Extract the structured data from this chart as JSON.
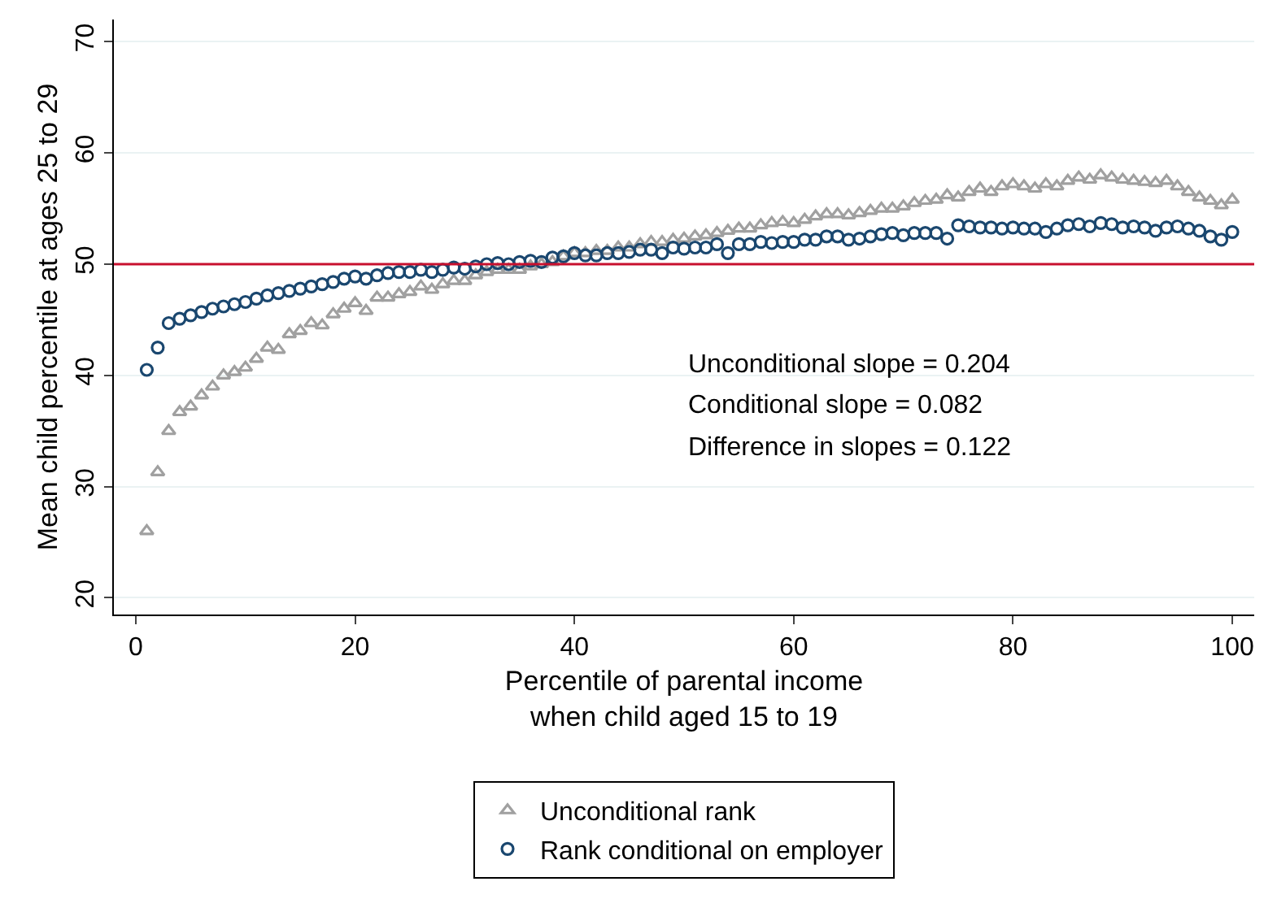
{
  "chart_data": {
    "type": "scatter",
    "xlabel": "Percentile of parental income\nwhen child aged 15 to 19",
    "ylabel": "Mean child percentile at ages 25 to 29",
    "x": [
      1,
      2,
      3,
      4,
      5,
      6,
      7,
      8,
      9,
      10,
      11,
      12,
      13,
      14,
      15,
      16,
      17,
      18,
      19,
      20,
      21,
      22,
      23,
      24,
      25,
      26,
      27,
      28,
      29,
      30,
      31,
      32,
      33,
      34,
      35,
      36,
      37,
      38,
      39,
      40,
      41,
      42,
      43,
      44,
      45,
      46,
      47,
      48,
      49,
      50,
      51,
      52,
      53,
      54,
      55,
      56,
      57,
      58,
      59,
      60,
      61,
      62,
      63,
      64,
      65,
      66,
      67,
      68,
      69,
      70,
      71,
      72,
      73,
      74,
      75,
      76,
      77,
      78,
      79,
      80,
      81,
      82,
      83,
      84,
      85,
      86,
      87,
      88,
      89,
      90,
      91,
      92,
      93,
      94,
      95,
      96,
      97,
      98,
      99,
      100
    ],
    "series": [
      {
        "name": "Unconditional rank",
        "color": "#a0a0a0",
        "marker": "triangle",
        "values": [
          26,
          31.3,
          35,
          36.7,
          37.2,
          38.2,
          39,
          40,
          40.3,
          40.7,
          41.5,
          42.5,
          42.3,
          43.7,
          44,
          44.7,
          44.5,
          45.5,
          46,
          46.5,
          45.8,
          47,
          47,
          47.3,
          47.5,
          48,
          47.7,
          48.2,
          48.5,
          48.5,
          49,
          49.3,
          49.5,
          49.5,
          49.5,
          49.8,
          50,
          50.2,
          50.7,
          51,
          51,
          51.2,
          51.2,
          51.5,
          51.5,
          51.8,
          52,
          52,
          52.2,
          52.3,
          52.5,
          52.6,
          52.8,
          53,
          53.2,
          53.2,
          53.5,
          53.7,
          53.8,
          53.7,
          54,
          54.3,
          54.5,
          54.5,
          54.4,
          54.6,
          54.8,
          55,
          55,
          55.2,
          55.5,
          55.7,
          55.8,
          56.2,
          56,
          56.5,
          56.8,
          56.5,
          57,
          57.2,
          57,
          56.8,
          57.2,
          57,
          57.5,
          57.8,
          57.6,
          58,
          57.8,
          57.6,
          57.5,
          57.4,
          57.3,
          57.5,
          57,
          56.5,
          56,
          55.7,
          55.3,
          55.8
        ]
      },
      {
        "name": "Rank conditional on employer",
        "color": "#1a476f",
        "marker": "circle",
        "values": [
          40.5,
          42.5,
          44.7,
          45.1,
          45.4,
          45.7,
          46,
          46.2,
          46.4,
          46.6,
          46.9,
          47.2,
          47.4,
          47.6,
          47.8,
          48,
          48.2,
          48.4,
          48.7,
          48.9,
          48.7,
          49,
          49.2,
          49.3,
          49.3,
          49.5,
          49.3,
          49.5,
          49.7,
          49.6,
          49.8,
          50,
          50.1,
          50,
          50.2,
          50.3,
          50.2,
          50.6,
          50.7,
          51,
          50.8,
          50.8,
          51,
          51,
          51.1,
          51.3,
          51.3,
          51,
          51.5,
          51.4,
          51.5,
          51.5,
          51.8,
          51,
          51.8,
          51.8,
          52,
          51.9,
          52,
          52,
          52.2,
          52.2,
          52.5,
          52.5,
          52.2,
          52.3,
          52.5,
          52.7,
          52.8,
          52.6,
          52.8,
          52.8,
          52.8,
          52.3,
          53.5,
          53.4,
          53.3,
          53.3,
          53.2,
          53.3,
          53.2,
          53.2,
          52.9,
          53.2,
          53.5,
          53.6,
          53.4,
          53.7,
          53.6,
          53.3,
          53.4,
          53.3,
          53,
          53.3,
          53.4,
          53.2,
          53,
          52.5,
          52.2,
          52.9
        ]
      }
    ],
    "xlim": [
      -2,
      102
    ],
    "xticks": [
      0,
      20,
      40,
      60,
      80,
      100
    ],
    "ylim": [
      18.5,
      72
    ],
    "yticks": [
      20,
      30,
      40,
      50,
      60,
      70
    ],
    "grid": "y",
    "legend": "bottom",
    "ref_lines": [
      {
        "axis": "y",
        "value": 50,
        "color": "#c8102e"
      }
    ],
    "annotations": [
      "Unconditional slope = 0.204",
      "Conditional slope = 0.082",
      "Difference in slopes = 0.122"
    ]
  }
}
